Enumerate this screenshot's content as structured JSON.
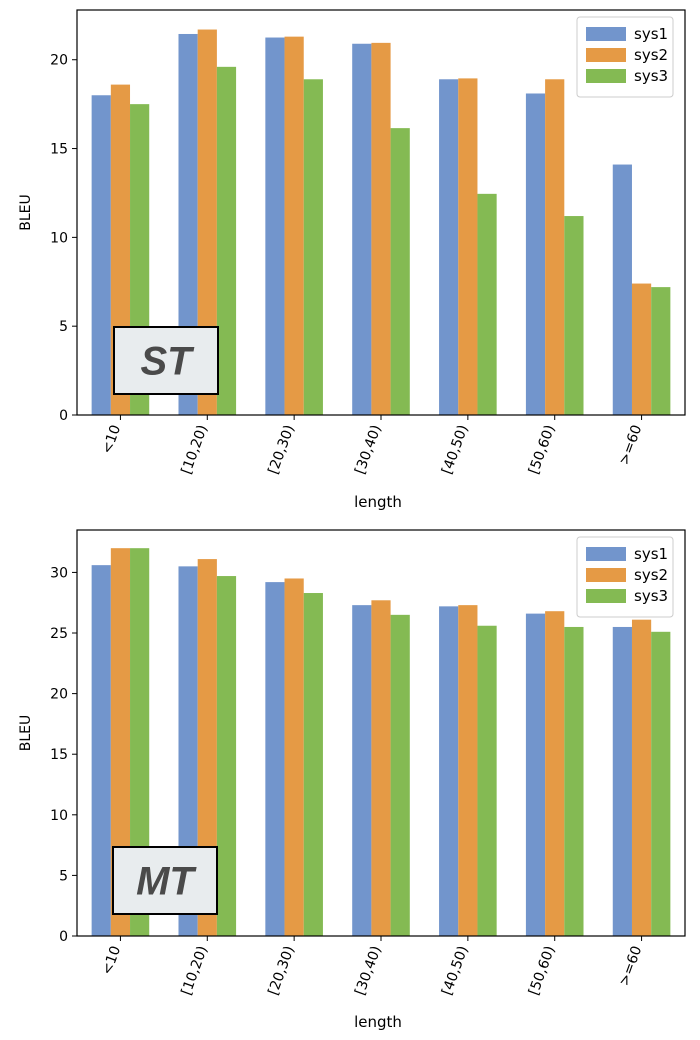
{
  "chart_data": [
    {
      "type": "bar",
      "tag": "ST",
      "categories": [
        "<10",
        "[10,20)",
        "[20,30)",
        "[30,40)",
        "[40,50)",
        "[50,60)",
        ">=60"
      ],
      "series": [
        {
          "name": "sys1",
          "color": "#7295CC",
          "values": [
            18.0,
            21.45,
            21.25,
            20.9,
            18.9,
            18.1,
            14.1
          ]
        },
        {
          "name": "sys2",
          "color": "#E59A45",
          "values": [
            18.6,
            21.7,
            21.3,
            20.95,
            18.95,
            18.9,
            7.4
          ]
        },
        {
          "name": "sys3",
          "color": "#84BA53",
          "values": [
            17.5,
            19.6,
            18.9,
            16.15,
            12.45,
            11.2,
            7.2
          ]
        }
      ],
      "xlabel": "length",
      "ylabel": "BLEU",
      "ylim": [
        0,
        22.8
      ],
      "yticks": [
        0,
        5,
        10,
        15,
        20
      ],
      "legend": "top-right"
    },
    {
      "type": "bar",
      "tag": "MT",
      "categories": [
        "<10",
        "[10,20)",
        "[20,30)",
        "[30,40)",
        "[40,50)",
        "[50,60)",
        ">=60"
      ],
      "series": [
        {
          "name": "sys1",
          "color": "#7295CC",
          "values": [
            30.6,
            30.5,
            29.2,
            27.3,
            27.2,
            26.6,
            25.5
          ]
        },
        {
          "name": "sys2",
          "color": "#E59A45",
          "values": [
            32.0,
            31.1,
            29.5,
            27.7,
            27.3,
            26.8,
            26.1
          ]
        },
        {
          "name": "sys3",
          "color": "#84BA53",
          "values": [
            32.0,
            29.7,
            28.3,
            26.5,
            25.6,
            25.5,
            25.1
          ]
        }
      ],
      "xlabel": "length",
      "ylabel": "BLEU",
      "ylim": [
        0,
        33.5
      ],
      "yticks": [
        0,
        5,
        10,
        15,
        20,
        25,
        30
      ],
      "legend": "top-right"
    }
  ]
}
